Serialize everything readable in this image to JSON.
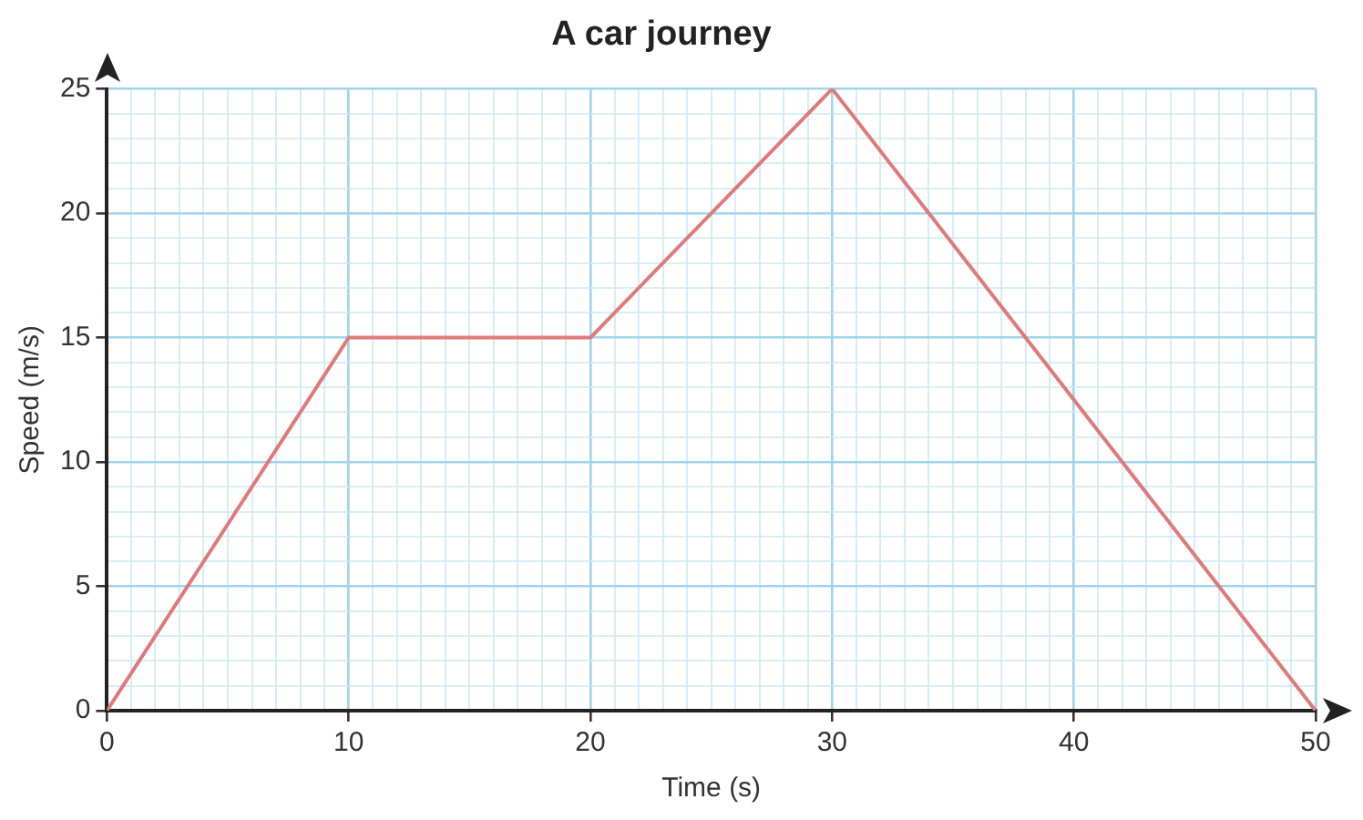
{
  "chart_data": {
    "type": "line",
    "title": "A car journey",
    "xlabel": "Time (s)",
    "ylabel": "Speed (m/s)",
    "x": [
      0,
      10,
      20,
      30,
      50
    ],
    "series": [
      {
        "color": "#e07a7a",
        "values": [
          0,
          15,
          15,
          25,
          0
        ]
      }
    ],
    "xlim": [
      0,
      50
    ],
    "xticks": [
      0,
      {
        "value": 1,
        "label": null
      },
      {
        "value": 2,
        "label": null
      },
      {
        "value": 3,
        "label": null
      },
      {
        "value": 4,
        "label": null
      },
      {
        "value": 5,
        "label": null
      },
      {
        "value": 6,
        "label": null
      },
      {
        "value": 7,
        "label": null
      },
      {
        "value": 8,
        "label": null
      },
      {
        "value": 9,
        "label": null
      },
      10,
      {
        "value": 11,
        "label": null
      },
      {
        "value": 12,
        "label": null
      },
      {
        "value": 13,
        "label": null
      },
      {
        "value": 14,
        "label": null
      },
      {
        "value": 15,
        "label": null
      },
      {
        "value": 16,
        "label": null
      },
      {
        "value": 17,
        "label": null
      },
      {
        "value": 18,
        "label": null
      },
      {
        "value": 19,
        "label": null
      },
      20,
      {
        "value": 21,
        "label": null
      },
      {
        "value": 22,
        "label": null
      },
      {
        "value": 23,
        "label": null
      },
      {
        "value": 24,
        "label": null
      },
      {
        "value": 25,
        "label": null
      },
      {
        "value": 26,
        "label": null
      },
      {
        "value": 27,
        "label": null
      },
      {
        "value": 28,
        "label": null
      },
      {
        "value": 29,
        "label": null
      },
      30,
      {
        "value": 31,
        "label": null
      },
      {
        "value": 32,
        "label": null
      },
      {
        "value": 33,
        "label": null
      },
      {
        "value": 34,
        "label": null
      },
      {
        "value": 35,
        "label": null
      },
      {
        "value": 36,
        "label": null
      },
      {
        "value": 37,
        "label": null
      },
      {
        "value": 38,
        "label": null
      },
      {
        "value": 39,
        "label": null
      },
      40,
      {
        "value": 41,
        "label": null
      },
      {
        "value": 42,
        "label": null
      },
      {
        "value": 43,
        "label": null
      },
      {
        "value": 44,
        "label": null
      },
      {
        "value": 45,
        "label": null
      },
      {
        "value": 46,
        "label": null
      },
      {
        "value": 47,
        "label": null
      },
      {
        "value": 48,
        "label": null
      },
      {
        "value": 49,
        "label": null
      },
      50
    ],
    "ylim": [
      0,
      25
    ],
    "yticks": [
      0,
      {
        "value": 1,
        "label": null
      },
      {
        "value": 2,
        "label": null
      },
      {
        "value": 3,
        "label": null
      },
      {
        "value": 4,
        "label": null
      },
      5,
      {
        "value": 6,
        "label": null
      },
      {
        "value": 7,
        "label": null
      },
      {
        "value": 8,
        "label": null
      },
      {
        "value": 9,
        "label": null
      },
      10,
      {
        "value": 11,
        "label": null
      },
      {
        "value": 12,
        "label": null
      },
      {
        "value": 13,
        "label": null
      },
      {
        "value": 14,
        "label": null
      },
      15,
      {
        "value": 16,
        "label": null
      },
      {
        "value": 17,
        "label": null
      },
      {
        "value": 18,
        "label": null
      },
      {
        "value": 19,
        "label": null
      },
      20,
      {
        "value": 21,
        "label": null
      },
      {
        "value": 22,
        "label": null
      },
      {
        "value": 23,
        "label": null
      },
      {
        "value": 24,
        "label": null
      },
      25
    ],
    "grid": true,
    "legend": false,
    "marker": "none",
    "line_style": "solid"
  }
}
